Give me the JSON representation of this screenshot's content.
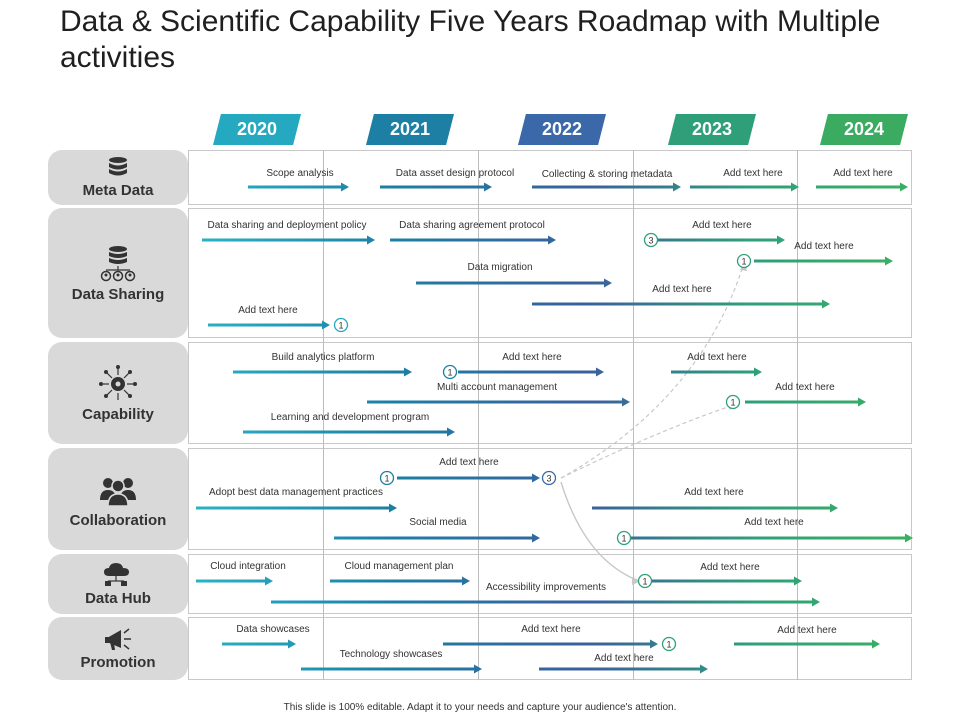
{
  "title": "Data & Scientific Capability Five Years Roadmap with Multiple activities",
  "footer": "This slide is 100% editable. Adapt it to your needs and capture your audience's attention.",
  "years": [
    {
      "label": "2020",
      "color": "#25a9c0"
    },
    {
      "label": "2021",
      "color": "#1c7fa3"
    },
    {
      "label": "2022",
      "color": "#3a68a8"
    },
    {
      "label": "2023",
      "color": "#2f9f7a"
    },
    {
      "label": "2024",
      "color": "#3aab61"
    }
  ],
  "rows": [
    {
      "label": "Meta Data",
      "icon": "database-icon"
    },
    {
      "label": "Data Sharing",
      "icon": "shared-database-icon"
    },
    {
      "label": "Capability",
      "icon": "gear-network-icon"
    },
    {
      "label": "Collaboration",
      "icon": "team-icon"
    },
    {
      "label": "Data Hub",
      "icon": "cloud-network-icon"
    },
    {
      "label": "Promotion",
      "icon": "megaphone-icon"
    }
  ],
  "activities": [
    {
      "text": "Scope analysis"
    },
    {
      "text": "Data asset design protocol"
    },
    {
      "text": "Collecting & storing metadata"
    },
    {
      "text": "Add text here"
    },
    {
      "text": "Add text here"
    },
    {
      "text": "Data sharing and deployment policy"
    },
    {
      "text": "Data sharing agreement protocol"
    },
    {
      "text": "Add text here"
    },
    {
      "text": "Add text here"
    },
    {
      "text": "Data migration"
    },
    {
      "text": "Add text here"
    },
    {
      "text": "Add text here"
    },
    {
      "text": "Build analytics platform"
    },
    {
      "text": "Add text here"
    },
    {
      "text": "Add text here"
    },
    {
      "text": "Multi account management"
    },
    {
      "text": "Add text here"
    },
    {
      "text": "Learning and development program"
    },
    {
      "text": "Add text here"
    },
    {
      "text": "Adopt best data management  practices"
    },
    {
      "text": "Add text here"
    },
    {
      "text": "Social media"
    },
    {
      "text": "Add text here"
    },
    {
      "text": "Cloud integration"
    },
    {
      "text": "Cloud management plan"
    },
    {
      "text": "Add text here"
    },
    {
      "text": "Accessibility improvements"
    },
    {
      "text": "Data showcases"
    },
    {
      "text": "Add text here"
    },
    {
      "text": "Add text here"
    },
    {
      "text": "Technology showcases"
    },
    {
      "text": "Add text here"
    }
  ],
  "markers": [
    "3",
    "1",
    "1",
    "1",
    "1",
    "1",
    "3",
    "1",
    "1",
    "1"
  ]
}
